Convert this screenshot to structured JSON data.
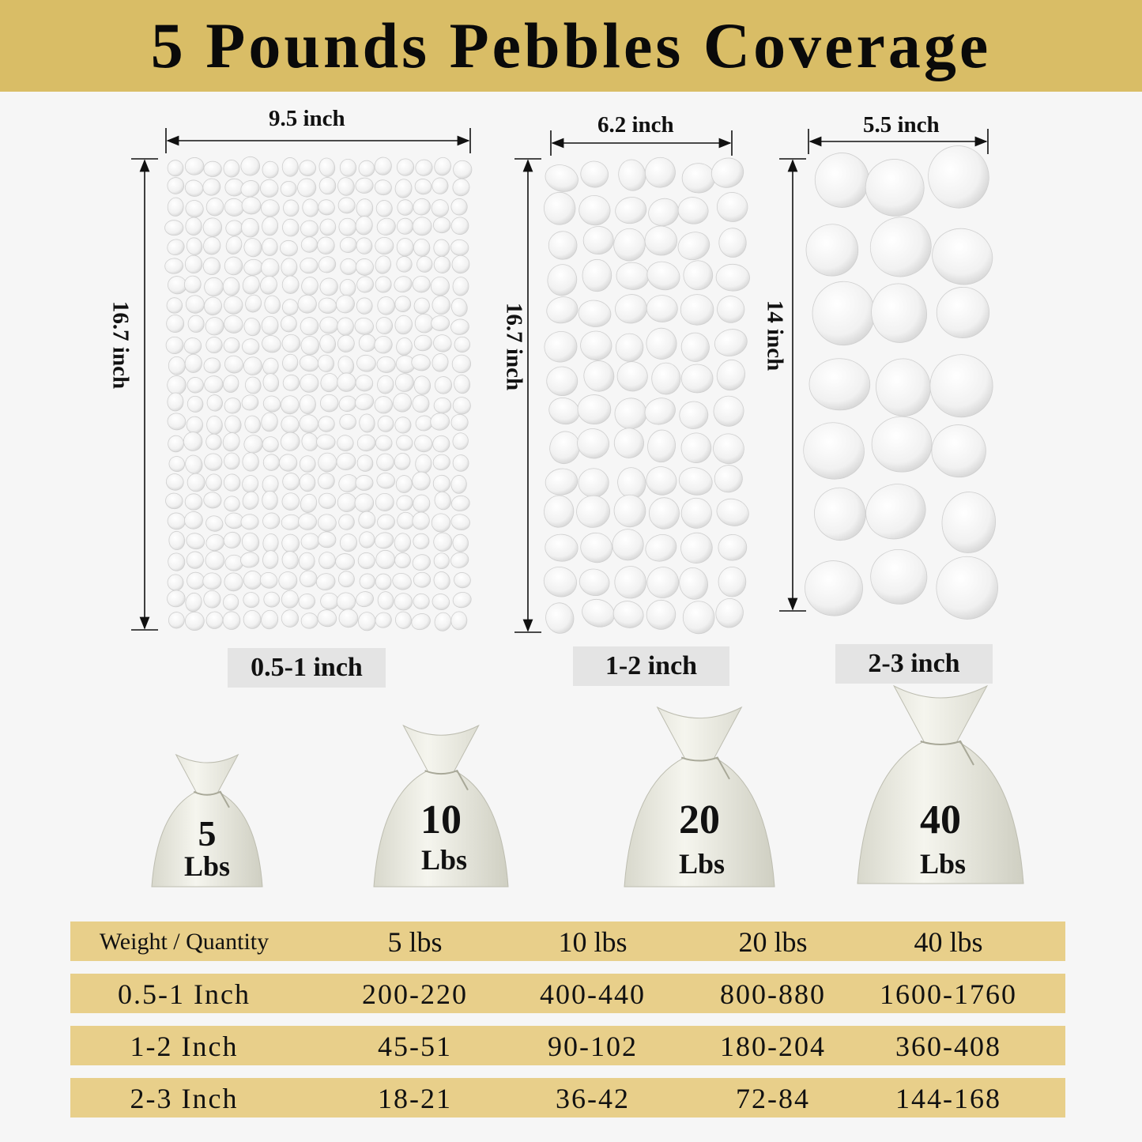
{
  "title": "5 Pounds Pebbles Coverage",
  "panels": [
    {
      "width": "9.5 inch",
      "height": "16.7 inch",
      "size": "0.5-1 inch"
    },
    {
      "width": "6.2 inch",
      "height": "16.7 inch",
      "size": "1-2 inch"
    },
    {
      "width": "5.5 inch",
      "height": "14 inch",
      "size": "2-3 inch"
    }
  ],
  "bags": [
    {
      "number": "5",
      "unit": "Lbs"
    },
    {
      "number": "10",
      "unit": "Lbs"
    },
    {
      "number": "20",
      "unit": "Lbs"
    },
    {
      "number": "40",
      "unit": "Lbs"
    }
  ],
  "table": {
    "header": [
      "Weight / Quantity",
      "5 lbs",
      "10 lbs",
      "20 lbs",
      "40 lbs"
    ],
    "rows": [
      [
        "0.5-1 Inch",
        "200-220",
        "400-440",
        "800-880",
        "1600-1760"
      ],
      [
        "1-2 Inch",
        "45-51",
        "90-102",
        "180-204",
        "360-408"
      ],
      [
        "2-3 Inch",
        "18-21",
        "36-42",
        "72-84",
        "144-168"
      ]
    ]
  },
  "colors": {
    "banner": "#d9bd66",
    "table_row": "#e8cf8a",
    "label_box": "#e4e4e4"
  }
}
